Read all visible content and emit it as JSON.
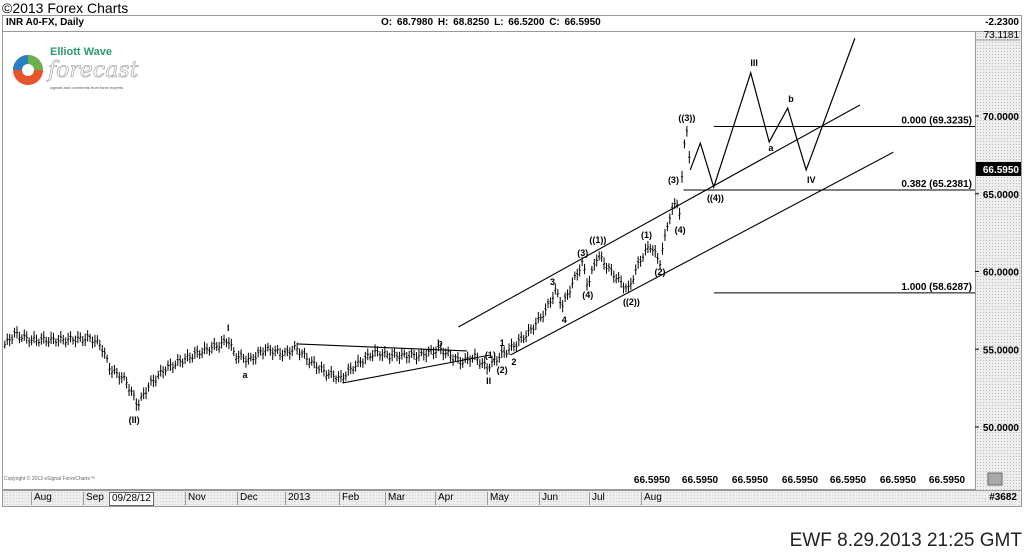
{
  "page": {
    "copyright_top": "©2013 Forex Charts",
    "footer": "EWF 8.29.2013 21:25 GMT",
    "esignal_copyright": "Copyright © 2013 eSignal ForexCharts™"
  },
  "logo": {
    "title": "Elliott Wave",
    "script": "forecast",
    "tagline": "signals and comments from forex experts"
  },
  "header": {
    "symbol": "INR A0-FX, Daily",
    "ohlc": "O: 68.7980   H: 68.8250   L: 66.5200   C: 66.5950",
    "change": "-2.2300"
  },
  "time_axis": {
    "labels": [
      "Aug",
      "Sep",
      "09/28/12",
      "Nov",
      "Dec",
      "2013",
      "Feb",
      "Mar",
      "Apr",
      "May",
      "Jun",
      "Jul",
      "Aug"
    ],
    "bar_count": "#3682"
  },
  "bottom_values": [
    "66.5950",
    "66.5950",
    "66.5950",
    "66.5950",
    "66.5950",
    "66.5950",
    "66.5950"
  ],
  "colors": {
    "bars": "#000000",
    "lines": "#000000",
    "last_price_bg": "#000000",
    "last_price_text": "#ffffff",
    "axis_bg": "#eeeeee"
  },
  "chart_data": {
    "type": "line",
    "style": "ohlc-bars",
    "title": "INR A0-FX, Daily",
    "ylim": [
      48.4,
      73.1181
    ],
    "yticks": [
      "70.0000",
      "65.0000",
      "60.0000",
      "55.0000",
      "50.0000"
    ],
    "ytop_label": "73.1181",
    "last_price": "66.5950",
    "grid": false,
    "prices": [
      [
        "2012-07-17",
        55.3
      ],
      [
        "2012-07-23",
        56.0
      ],
      [
        "2012-08-01",
        55.6
      ],
      [
        "2012-08-19",
        55.6
      ],
      [
        "2012-09-06",
        55.7
      ],
      [
        "2012-09-12",
        55.3
      ],
      [
        "2012-09-18",
        53.7
      ],
      [
        "2012-09-27",
        53.0
      ],
      [
        "2012-10-04",
        51.4
      ],
      [
        "2012-10-11",
        52.7
      ],
      [
        "2012-10-20",
        53.7
      ],
      [
        "2012-10-29",
        54.2
      ],
      [
        "2012-11-10",
        54.8
      ],
      [
        "2012-11-22",
        55.3
      ],
      [
        "2012-11-27",
        55.6
      ],
      [
        "2012-12-01",
        54.6
      ],
      [
        "2012-12-10",
        54.3
      ],
      [
        "2012-12-19",
        55.0
      ],
      [
        "2012-12-31",
        54.7
      ],
      [
        "2013-01-06",
        55.1
      ],
      [
        "2013-01-15",
        54.2
      ],
      [
        "2013-01-24",
        53.5
      ],
      [
        "2013-02-02",
        53.1
      ],
      [
        "2013-02-10",
        53.9
      ],
      [
        "2013-02-22",
        54.8
      ],
      [
        "2013-03-03",
        54.6
      ],
      [
        "2013-03-21",
        54.6
      ],
      [
        "2013-04-02",
        55.0
      ],
      [
        "2013-04-14",
        54.2
      ],
      [
        "2013-04-23",
        54.5
      ],
      [
        "2013-04-30",
        53.8
      ],
      [
        "2013-05-08",
        54.6
      ],
      [
        "2013-05-17",
        55.3
      ],
      [
        "2013-05-26",
        56.2
      ],
      [
        "2013-06-04",
        57.5
      ],
      [
        "2013-06-10",
        58.8
      ],
      [
        "2013-06-14",
        57.8
      ],
      [
        "2013-06-21",
        59.5
      ],
      [
        "2013-06-26",
        60.6
      ],
      [
        "2013-06-29",
        59.1
      ],
      [
        "2013-07-05",
        61.1
      ],
      [
        "2013-07-12",
        60.1
      ],
      [
        "2013-07-23",
        58.8
      ],
      [
        "2013-07-30",
        60.7
      ],
      [
        "2013-08-05",
        61.7
      ],
      [
        "2013-08-11",
        60.6
      ],
      [
        "2013-08-16",
        63.3
      ],
      [
        "2013-08-21",
        64.6
      ],
      [
        "2013-08-23",
        63.6
      ],
      [
        "2013-08-25",
        67.8
      ],
      [
        "2013-08-27",
        69.2
      ],
      [
        "2013-08-29",
        66.595
      ]
    ],
    "projection": [
      [
        "2013-08-29",
        66.53
      ],
      [
        "2013-09-04",
        68.26
      ],
      [
        "2013-09-12",
        65.43
      ],
      [
        "2013-10-04",
        72.77
      ],
      [
        "2013-10-15",
        68.33
      ],
      [
        "2013-10-26",
        70.51
      ],
      [
        "2013-11-06",
        66.53
      ],
      [
        "2013-12-05",
        75.0
      ]
    ],
    "trendlines": [
      {
        "from": [
          "2013-04-13",
          56.43
        ],
        "to": [
          "2013-12-08",
          70.71
        ]
      },
      {
        "from": [
          "2013-05-14",
          54.63
        ],
        "to": [
          "2013-12-28",
          67.68
        ]
      },
      {
        "from": [
          "2013-01-07",
          55.34
        ],
        "to": [
          "2013-04-18",
          54.89
        ]
      },
      {
        "from": [
          "2013-02-03",
          52.83
        ],
        "to": [
          "2013-05-02",
          54.63
        ]
      }
    ],
    "fib_levels": [
      {
        "label": "0.000 (69.3235)",
        "price": 69.3235,
        "from": "2013-09-12"
      },
      {
        "label": "0.382 (65.2381)",
        "price": 65.2381,
        "from": "2013-08-25"
      },
      {
        "label": "1.000 (58.6287)",
        "price": 58.6287,
        "from": "2013-09-12"
      }
    ],
    "annotations": [
      {
        "text": "(II)",
        "date": "2012-10-02",
        "price": 50.45
      },
      {
        "text": "I",
        "date": "2012-11-27",
        "price": 56.37
      },
      {
        "text": "a",
        "date": "2012-12-07",
        "price": 53.34
      },
      {
        "text": "b",
        "date": "2013-04-02",
        "price": 55.4
      },
      {
        "text": "II",
        "date": "2013-05-01",
        "price": 52.96
      },
      {
        "text": "(1)",
        "date": "2013-05-02",
        "price": 54.63
      },
      {
        "text": "1",
        "date": "2013-05-09",
        "price": 55.4
      },
      {
        "text": "(2)",
        "date": "2013-05-09",
        "price": 53.67
      },
      {
        "text": "2",
        "date": "2013-05-16",
        "price": 54.18
      },
      {
        "text": "3",
        "date": "2013-06-08",
        "price": 59.32
      },
      {
        "text": "4",
        "date": "2013-06-15",
        "price": 56.88
      },
      {
        "text": "(3)",
        "date": "2013-06-26",
        "price": 61.19
      },
      {
        "text": "(4)",
        "date": "2013-06-29",
        "price": 58.49
      },
      {
        "text": "((1))",
        "date": "2013-07-05",
        "price": 61.64
      },
      {
        "text": "((2))",
        "date": "2013-07-25",
        "price": 58.04
      },
      {
        "text": "(1)",
        "date": "2013-08-03",
        "price": 62.35
      },
      {
        "text": "(2)",
        "date": "2013-08-11",
        "price": 59.97
      },
      {
        "text": "(3)",
        "date": "2013-08-19",
        "price": 65.88
      },
      {
        "text": "(4)",
        "date": "2013-08-23",
        "price": 62.67
      },
      {
        "text": "((3))",
        "date": "2013-08-27",
        "price": 69.87
      },
      {
        "text": "((4))",
        "date": "2013-09-13",
        "price": 64.73
      },
      {
        "text": "III",
        "date": "2013-10-06",
        "price": 73.4
      },
      {
        "text": "a",
        "date": "2013-10-16",
        "price": 67.94
      },
      {
        "text": "b",
        "date": "2013-10-28",
        "price": 71.09
      },
      {
        "text": "IV",
        "date": "2013-11-09",
        "price": 65.88
      }
    ]
  }
}
